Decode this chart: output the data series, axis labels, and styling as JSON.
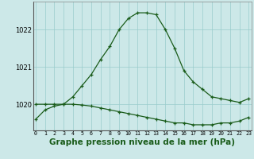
{
  "hours": [
    0,
    1,
    2,
    3,
    4,
    5,
    6,
    7,
    8,
    9,
    10,
    11,
    12,
    13,
    14,
    15,
    16,
    17,
    18,
    19,
    20,
    21,
    22,
    23
  ],
  "line1": [
    1019.6,
    1019.85,
    1019.95,
    1020.0,
    1020.2,
    1020.5,
    1020.8,
    1021.2,
    1021.55,
    1022.0,
    1022.3,
    1022.45,
    1022.45,
    1022.4,
    1022.0,
    1021.5,
    1020.9,
    1020.6,
    1020.4,
    1020.2,
    1020.15,
    1020.1,
    1020.05,
    1020.15
  ],
  "line2": [
    1020.0,
    1020.0,
    1020.0,
    1020.0,
    1020.0,
    1019.98,
    1019.95,
    1019.9,
    1019.85,
    1019.8,
    1019.75,
    1019.7,
    1019.65,
    1019.6,
    1019.55,
    1019.5,
    1019.5,
    1019.45,
    1019.45,
    1019.45,
    1019.5,
    1019.5,
    1019.55,
    1019.65
  ],
  "line_color": "#1a5c1a",
  "bg_color": "#cce8e8",
  "grid_color": "#99cccc",
  "ylim": [
    1019.3,
    1022.75
  ],
  "yticks": [
    1020,
    1021,
    1022
  ],
  "xtick_labels": [
    "0",
    "1",
    "2",
    "3",
    "4",
    "5",
    "6",
    "7",
    "8",
    "9",
    "10",
    "11",
    "12",
    "13",
    "14",
    "15",
    "16",
    "17",
    "18",
    "19",
    "20",
    "21",
    "22",
    "23"
  ],
  "xlabel": "Graphe pression niveau de la mer (hPa)",
  "marker": "+",
  "markersize": 3.5,
  "linewidth": 0.9,
  "xlabel_fontsize": 7.5,
  "xtick_fontsize": 4.8,
  "ytick_fontsize": 6.0
}
